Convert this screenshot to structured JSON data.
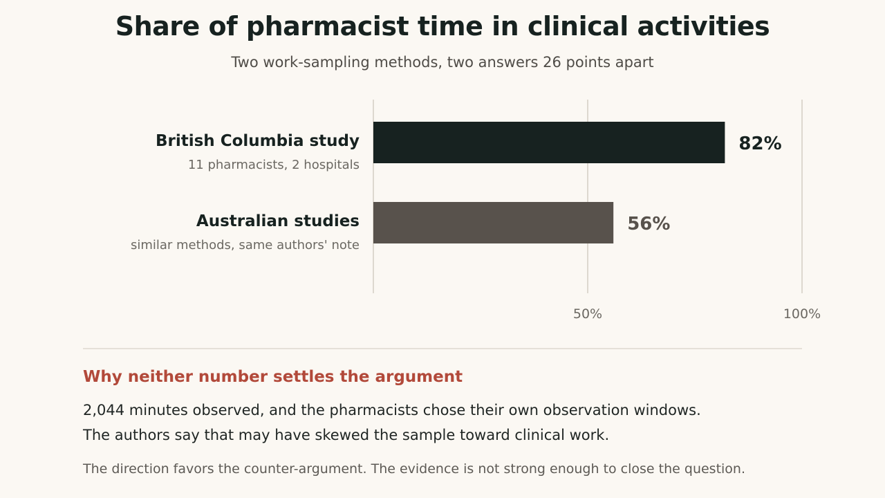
{
  "title": "Share of pharmacist time in clinical activities",
  "subtitle": "Two work-sampling methods, two answers 26 points apart",
  "chart_data": {
    "type": "bar",
    "orientation": "horizontal",
    "xlim": [
      0,
      100
    ],
    "grid": true,
    "ticks": [
      {
        "value": 50,
        "label": "50%"
      },
      {
        "value": 100,
        "label": "100%"
      }
    ],
    "bars": [
      {
        "label": "British Columbia study",
        "sublabel": "11 pharmacists, 2 hospitals",
        "value": 82,
        "value_label": "82%",
        "color": "#172220"
      },
      {
        "label": "Australian studies",
        "sublabel": "similar methods, same authors' note",
        "value": 56,
        "value_label": "56%",
        "color": "#58524c"
      }
    ]
  },
  "note": {
    "heading": "Why neither number settles the argument",
    "lines": [
      "2,044 minutes observed, and the pharmacists chose their own observation windows.",
      "The authors say that may have skewed the sample toward clinical work."
    ],
    "footer": "The direction favors the counter-argument. The evidence is not strong enough to close the question."
  },
  "colors": {
    "background": "#fbf8f3",
    "accent": "#b2493a",
    "grid": "#ddd8cf"
  }
}
